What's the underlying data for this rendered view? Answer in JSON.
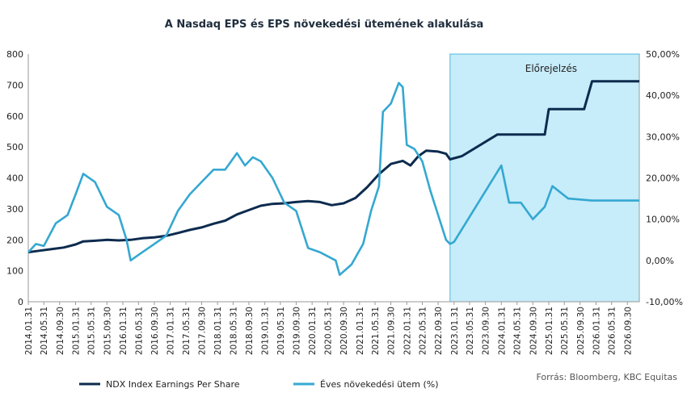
{
  "chart_data": {
    "type": "line",
    "title": "A Nasdaq EPS és EPS növekedési ütemének alakulása",
    "source": "Forrás: Bloomberg,  KBC Equitas",
    "forecast_label": "Előrejelzés",
    "forecast_start": "2022.12.31",
    "x_start": "2014.01.31",
    "x_end": "2026.12.31",
    "x_tick_labels": [
      "2014.01.31",
      "2014.05.31",
      "2014.09.30",
      "2015.01.31",
      "2015.05.31",
      "2015.09.30",
      "2016.01.31",
      "2016.05.31",
      "2016.09.30",
      "2017.01.31",
      "2017.05.31",
      "2017.09.30",
      "2018.01.31",
      "2018.05.31",
      "2018.09.30",
      "2019.01.31",
      "2019.05.31",
      "2019.09.30",
      "2020.01.31",
      "2020.05.31",
      "2020.09.30",
      "2021.01.31",
      "2021.05.31",
      "2021.09.30",
      "2022.01.31",
      "2022.05.31",
      "2022.09.30",
      "2023.01.31",
      "2023.05.31",
      "2023.09.30",
      "2024.01.31",
      "2024.05.31",
      "2024.09.30",
      "2025.01.31",
      "2025.05.31",
      "2025.09.30",
      "2026.01.31",
      "2026.05.31",
      "2026.09.30"
    ],
    "y_left": {
      "min": 0,
      "max": 800,
      "ticks": [
        "0",
        "100",
        "200",
        "300",
        "400",
        "500",
        "600",
        "700",
        "800"
      ]
    },
    "y_right": {
      "min": -10,
      "max": 50,
      "ticks": [
        "-10,00%",
        "0,00%",
        "10,00%",
        "20,00%",
        "30,00%",
        "40,00%",
        "50,00%"
      ]
    },
    "series": [
      {
        "name": "NDX Index Earnings Per Share",
        "axis": "left",
        "color": "#0d2b4e",
        "points": [
          [
            "2014.01.31",
            160
          ],
          [
            "2014.04.30",
            165
          ],
          [
            "2014.07.31",
            170
          ],
          [
            "2014.10.31",
            175
          ],
          [
            "2015.01.31",
            185
          ],
          [
            "2015.03.31",
            195
          ],
          [
            "2015.06.30",
            197
          ],
          [
            "2015.09.30",
            200
          ],
          [
            "2015.12.31",
            198
          ],
          [
            "2016.03.31",
            200
          ],
          [
            "2016.06.30",
            205
          ],
          [
            "2016.09.30",
            208
          ],
          [
            "2016.12.31",
            213
          ],
          [
            "2017.03.31",
            222
          ],
          [
            "2017.06.30",
            232
          ],
          [
            "2017.09.30",
            240
          ],
          [
            "2017.12.31",
            252
          ],
          [
            "2018.03.31",
            262
          ],
          [
            "2018.06.30",
            282
          ],
          [
            "2018.09.30",
            296
          ],
          [
            "2018.12.31",
            310
          ],
          [
            "2019.03.31",
            316
          ],
          [
            "2019.06.30",
            318
          ],
          [
            "2019.09.30",
            322
          ],
          [
            "2019.12.31",
            325
          ],
          [
            "2020.03.31",
            322
          ],
          [
            "2020.06.30",
            312
          ],
          [
            "2020.09.30",
            318
          ],
          [
            "2020.12.31",
            335
          ],
          [
            "2021.03.31",
            370
          ],
          [
            "2021.06.30",
            412
          ],
          [
            "2021.09.30",
            445
          ],
          [
            "2021.12.31",
            455
          ],
          [
            "2022.02.28",
            440
          ],
          [
            "2022.04.30",
            470
          ],
          [
            "2022.06.30",
            488
          ],
          [
            "2022.09.30",
            485
          ],
          [
            "2022.11.30",
            478
          ],
          [
            "2022.12.31",
            460
          ],
          [
            "2023.03.31",
            470
          ],
          [
            "2023.12.31",
            540
          ],
          [
            "2024.12.31",
            540
          ],
          [
            "2025.01.31",
            622
          ],
          [
            "2025.10.31",
            622
          ],
          [
            "2025.12.31",
            712
          ],
          [
            "2026.12.31",
            712
          ]
        ]
      },
      {
        "name": "Éves növekedési ütem (%)",
        "axis": "right",
        "color": "#34a8d1",
        "points": [
          [
            "2014.01.31",
            2
          ],
          [
            "2014.03.31",
            4
          ],
          [
            "2014.05.31",
            3.5
          ],
          [
            "2014.08.31",
            9
          ],
          [
            "2014.11.30",
            11
          ],
          [
            "2015.01.31",
            16
          ],
          [
            "2015.03.31",
            21
          ],
          [
            "2015.06.30",
            19
          ],
          [
            "2015.09.30",
            13
          ],
          [
            "2015.12.31",
            11
          ],
          [
            "2016.02.29",
            5
          ],
          [
            "2016.03.31",
            0
          ],
          [
            "2016.06.30",
            2
          ],
          [
            "2016.09.30",
            4
          ],
          [
            "2016.12.31",
            6
          ],
          [
            "2017.03.31",
            12
          ],
          [
            "2017.06.30",
            16
          ],
          [
            "2017.09.30",
            19
          ],
          [
            "2017.12.31",
            22
          ],
          [
            "2018.03.31",
            22
          ],
          [
            "2018.06.30",
            26
          ],
          [
            "2018.08.31",
            23
          ],
          [
            "2018.10.31",
            25
          ],
          [
            "2018.12.31",
            24
          ],
          [
            "2019.03.31",
            20
          ],
          [
            "2019.06.30",
            14
          ],
          [
            "2019.09.30",
            12
          ],
          [
            "2019.12.31",
            3
          ],
          [
            "2020.03.31",
            2
          ],
          [
            "2020.05.31",
            1
          ],
          [
            "2020.07.31",
            0
          ],
          [
            "2020.08.31",
            -3.5
          ],
          [
            "2020.11.30",
            -1
          ],
          [
            "2021.02.28",
            4
          ],
          [
            "2021.04.30",
            12
          ],
          [
            "2021.06.30",
            18
          ],
          [
            "2021.07.31",
            36
          ],
          [
            "2021.09.30",
            38
          ],
          [
            "2021.11.30",
            43
          ],
          [
            "2021.12.31",
            42
          ],
          [
            "2022.01.31",
            28
          ],
          [
            "2022.03.31",
            27
          ],
          [
            "2022.05.31",
            24
          ],
          [
            "2022.07.31",
            17
          ],
          [
            "2022.09.30",
            11
          ],
          [
            "2022.11.30",
            5
          ],
          [
            "2022.12.31",
            4
          ],
          [
            "2023.01.31",
            4.5
          ],
          [
            "2024.01.31",
            23
          ],
          [
            "2024.03.31",
            14
          ],
          [
            "2024.06.30",
            14
          ],
          [
            "2024.09.30",
            10
          ],
          [
            "2024.12.31",
            13
          ],
          [
            "2025.02.28",
            18
          ],
          [
            "2025.06.30",
            15
          ],
          [
            "2025.12.31",
            14.5
          ],
          [
            "2026.12.31",
            14.5
          ]
        ]
      }
    ],
    "legend_position": "bottom-left",
    "grid": false
  }
}
